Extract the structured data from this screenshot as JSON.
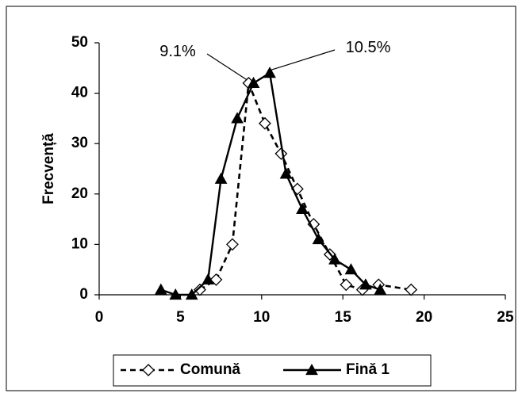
{
  "chart_data": {
    "type": "line",
    "title": "",
    "xlabel": "",
    "ylabel": "Frecvență",
    "xlim": [
      0,
      25
    ],
    "ylim": [
      0,
      50
    ],
    "xticks": [
      "0",
      "5",
      "10",
      "15",
      "20",
      "25"
    ],
    "yticks": [
      "0",
      "10",
      "20",
      "30",
      "40",
      "50"
    ],
    "grid": false,
    "legend_position": "bottom",
    "series": [
      {
        "name": "Comună",
        "style": "dashed",
        "marker": "diamond-open",
        "color": "#000000",
        "x": [
          6.2,
          7.2,
          8.2,
          9.2,
          10.2,
          11.2,
          12.2,
          13.2,
          14.2,
          15.2,
          16.2,
          17.2,
          19.2
        ],
        "y": [
          1,
          3,
          10,
          42,
          34,
          28,
          21,
          14,
          8,
          2,
          1,
          2,
          1
        ]
      },
      {
        "name": "Fină 1",
        "style": "solid",
        "marker": "triangle-filled",
        "color": "#000000",
        "x": [
          3.8,
          4.7,
          5.7,
          6.7,
          7.5,
          8.5,
          9.5,
          10.5,
          11.5,
          12.5,
          13.5,
          14.5,
          15.5,
          16.4,
          17.3
        ],
        "y": [
          1,
          0,
          0,
          3,
          23,
          35,
          42,
          44,
          24,
          17,
          11,
          7,
          5,
          2,
          1
        ]
      }
    ],
    "annotations": [
      {
        "text": "9.1%"
      },
      {
        "text": "10.5%"
      }
    ]
  }
}
